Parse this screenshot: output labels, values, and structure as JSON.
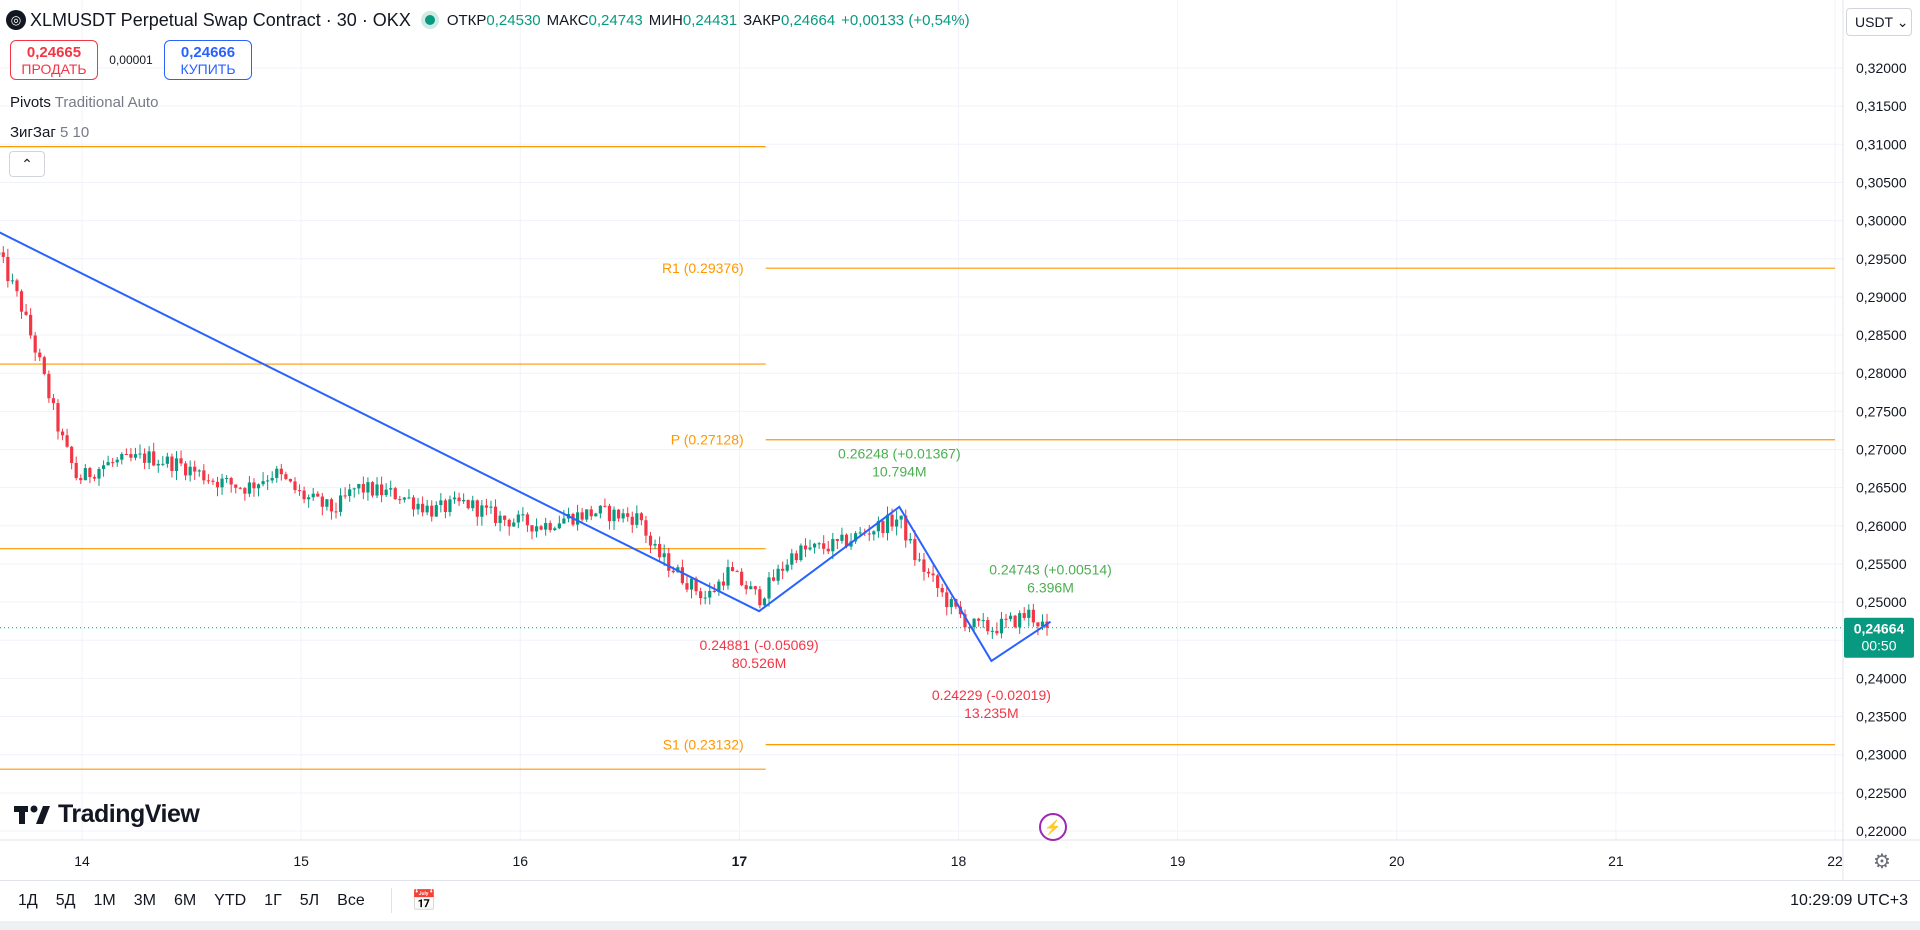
{
  "header": {
    "symbol_title": "XLMUSDT Perpetual Swap Contract · 30 · OKX",
    "open_label": "ОТКР",
    "open_value": "0,24530",
    "high_label": "МАКС",
    "high_value": "0,24743",
    "low_label": "МИН",
    "low_value": "0,24431",
    "close_label": "ЗАКР",
    "close_value": "0,24664",
    "change": "+0,00133 (+0,54%)"
  },
  "trade": {
    "sell_price": "0,24665",
    "sell_label": "ПРОДАТЬ",
    "spread": "0,00001",
    "buy_price": "0,24666",
    "buy_label": "КУПИТЬ"
  },
  "indicators": {
    "pivots_name": "Pivots",
    "pivots_params": "Traditional Auto",
    "zigzag_name": "ЗигЗаг",
    "zigzag_params": "5 10"
  },
  "currency": {
    "label": "USDT ⌄"
  },
  "branding": {
    "text": "TradingView"
  },
  "bottom_bar": {
    "ranges": [
      "1Д",
      "5Д",
      "1М",
      "3М",
      "6М",
      "YTD",
      "1Г",
      "5Л",
      "Все"
    ],
    "clock": "10:29:09 UTC+3"
  },
  "colors": {
    "up": "#089981",
    "down": "#f23645",
    "zigzag": "#2962ff",
    "pivot": "#ff9800",
    "label_up": "#4caf50"
  },
  "chart_data": {
    "type": "candlestick",
    "y_axis": {
      "ticks": [
        "0,32000",
        "0,31500",
        "0,31000",
        "0,30500",
        "0,30000",
        "0,29500",
        "0,29000",
        "0,28500",
        "0,28000",
        "0,27500",
        "0,27000",
        "0,26500",
        "0,26000",
        "0,25500",
        "0,25000",
        "0,24500",
        "0,24000",
        "0,23500",
        "0,23000",
        "0,22500",
        "0,22000"
      ],
      "range": [
        0.2195,
        0.3225
      ]
    },
    "x_axis": {
      "ticks": [
        {
          "label": "14",
          "day": 14,
          "bold": false
        },
        {
          "label": "15",
          "day": 15,
          "bold": false
        },
        {
          "label": "16",
          "day": 16,
          "bold": false
        },
        {
          "label": "17",
          "day": 17,
          "bold": true
        },
        {
          "label": "18",
          "day": 18,
          "bold": false
        },
        {
          "label": "19",
          "day": 19,
          "bold": false
        },
        {
          "label": "20",
          "day": 20,
          "bold": false
        },
        {
          "label": "21",
          "day": 21,
          "bold": false
        },
        {
          "label": "22",
          "day": 22,
          "bold": false
        }
      ],
      "range_days": [
        13.62,
        22.0
      ]
    },
    "current_price": {
      "price": 0.24664,
      "label": "0,24664",
      "countdown": "00:50"
    },
    "pivots": [
      {
        "price": 0.3097,
        "day_from": 13.62,
        "day_to": 17.12,
        "label": ""
      },
      {
        "price": 0.29376,
        "day_from": 17.12,
        "day_to": 22.0,
        "label": "R1 (0.29376)"
      },
      {
        "price": 0.2812,
        "day_from": 13.62,
        "day_to": 17.12,
        "label": ""
      },
      {
        "price": 0.27128,
        "day_from": 17.12,
        "day_to": 22.0,
        "label": "P (0.27128)"
      },
      {
        "price": 0.257,
        "day_from": 13.62,
        "day_to": 17.12,
        "label": ""
      },
      {
        "price": 0.23132,
        "day_from": 17.12,
        "day_to": 22.0,
        "label": "S1 (0.23132)"
      },
      {
        "price": 0.2281,
        "day_from": 13.62,
        "day_to": 17.12,
        "label": ""
      }
    ],
    "zigzag": [
      {
        "day": 13.62,
        "price": 0.2985
      },
      {
        "day": 17.09,
        "price": 0.24881
      },
      {
        "day": 17.73,
        "price": 0.26248
      },
      {
        "day": 18.15,
        "price": 0.24229
      },
      {
        "day": 18.42,
        "price": 0.24743
      }
    ],
    "zigzag_labels": [
      {
        "day": 17.09,
        "price": 0.2437,
        "line1": "0.24881 (-0.05069)",
        "line2": "80.526M",
        "kind": "down"
      },
      {
        "day": 17.73,
        "price": 0.2688,
        "line1": "0.26248 (+0.01367)",
        "line2": "10.794M",
        "kind": "up"
      },
      {
        "day": 18.15,
        "price": 0.2372,
        "line1": "0.24229 (-0.02019)",
        "line2": "13.235M",
        "kind": "down"
      },
      {
        "day": 18.42,
        "price": 0.2536,
        "line1": "0.24743 (+0.00514)",
        "line2": "6.396M",
        "kind": "up"
      }
    ],
    "anchors": [
      [
        13.62,
        0.2955
      ],
      [
        13.72,
        0.289
      ],
      [
        13.8,
        0.282
      ],
      [
        13.9,
        0.272
      ],
      [
        13.98,
        0.266
      ],
      [
        14.1,
        0.268
      ],
      [
        14.3,
        0.269
      ],
      [
        14.45,
        0.268
      ],
      [
        14.6,
        0.266
      ],
      [
        14.75,
        0.265
      ],
      [
        14.88,
        0.267
      ],
      [
        15.0,
        0.264
      ],
      [
        15.15,
        0.262
      ],
      [
        15.25,
        0.265
      ],
      [
        15.45,
        0.264
      ],
      [
        15.6,
        0.262
      ],
      [
        15.75,
        0.263
      ],
      [
        15.9,
        0.261
      ],
      [
        16.1,
        0.26
      ],
      [
        16.2,
        0.261
      ],
      [
        16.35,
        0.2618
      ],
      [
        16.55,
        0.261
      ],
      [
        16.6,
        0.257
      ],
      [
        16.75,
        0.253
      ],
      [
        16.85,
        0.2505
      ],
      [
        16.95,
        0.254
      ],
      [
        17.09,
        0.2505
      ],
      [
        17.25,
        0.2565
      ],
      [
        17.45,
        0.2575
      ],
      [
        17.6,
        0.2595
      ],
      [
        17.73,
        0.261
      ],
      [
        17.8,
        0.256
      ],
      [
        17.95,
        0.25
      ],
      [
        18.05,
        0.247
      ],
      [
        18.15,
        0.2465
      ],
      [
        18.25,
        0.2475
      ],
      [
        18.32,
        0.2485
      ],
      [
        18.38,
        0.247
      ],
      [
        18.42,
        0.2466
      ]
    ],
    "candle_step_days": 0.0208,
    "title": "XLMUSDT Perpetual Swap Contract · 30 · OKX"
  }
}
